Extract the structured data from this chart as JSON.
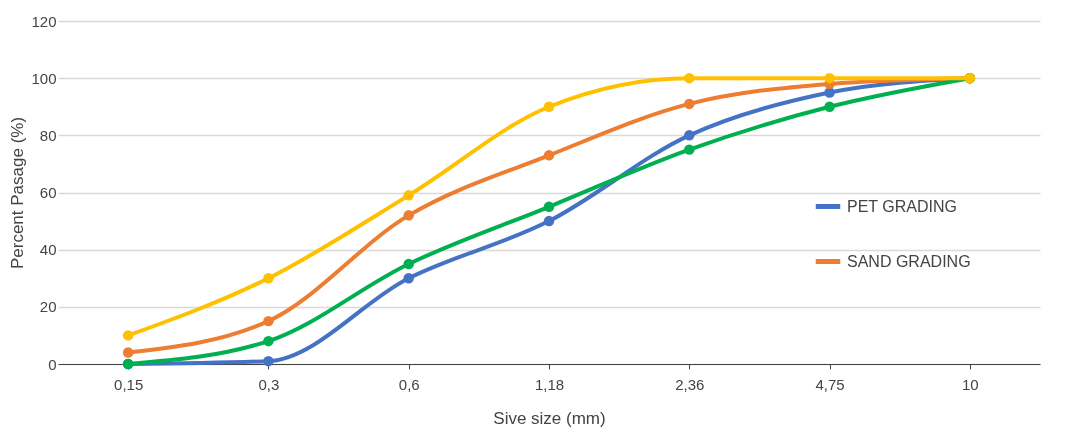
{
  "chart_data": {
    "type": "line",
    "xlabel": "Sive size (mm)",
    "ylabel": "Percent Pasage (%)",
    "categories": [
      "0,15",
      "0,3",
      "0,6",
      "1,18",
      "2,36",
      "4,75",
      "10"
    ],
    "series": [
      {
        "name": "PET GRADING",
        "color": "#4472c4",
        "values": [
          0,
          1,
          30,
          50,
          80,
          95,
          100
        ]
      },
      {
        "name": "SAND GRADING",
        "color": "#ed7d31",
        "values": [
          4,
          15,
          52,
          73,
          91,
          98,
          100
        ]
      },
      {
        "color": "#00b050",
        "values": [
          0,
          8,
          35,
          55,
          75,
          90,
          100
        ]
      },
      {
        "color": "#ffc000",
        "values": [
          10,
          30,
          59,
          90,
          100,
          100,
          100
        ]
      }
    ],
    "ylim": [
      0,
      120
    ],
    "yticks": [
      0,
      20,
      40,
      60,
      80,
      100,
      120
    ],
    "grid": "y",
    "legend": "right",
    "marker": "circle",
    "line_style": "solid"
  }
}
